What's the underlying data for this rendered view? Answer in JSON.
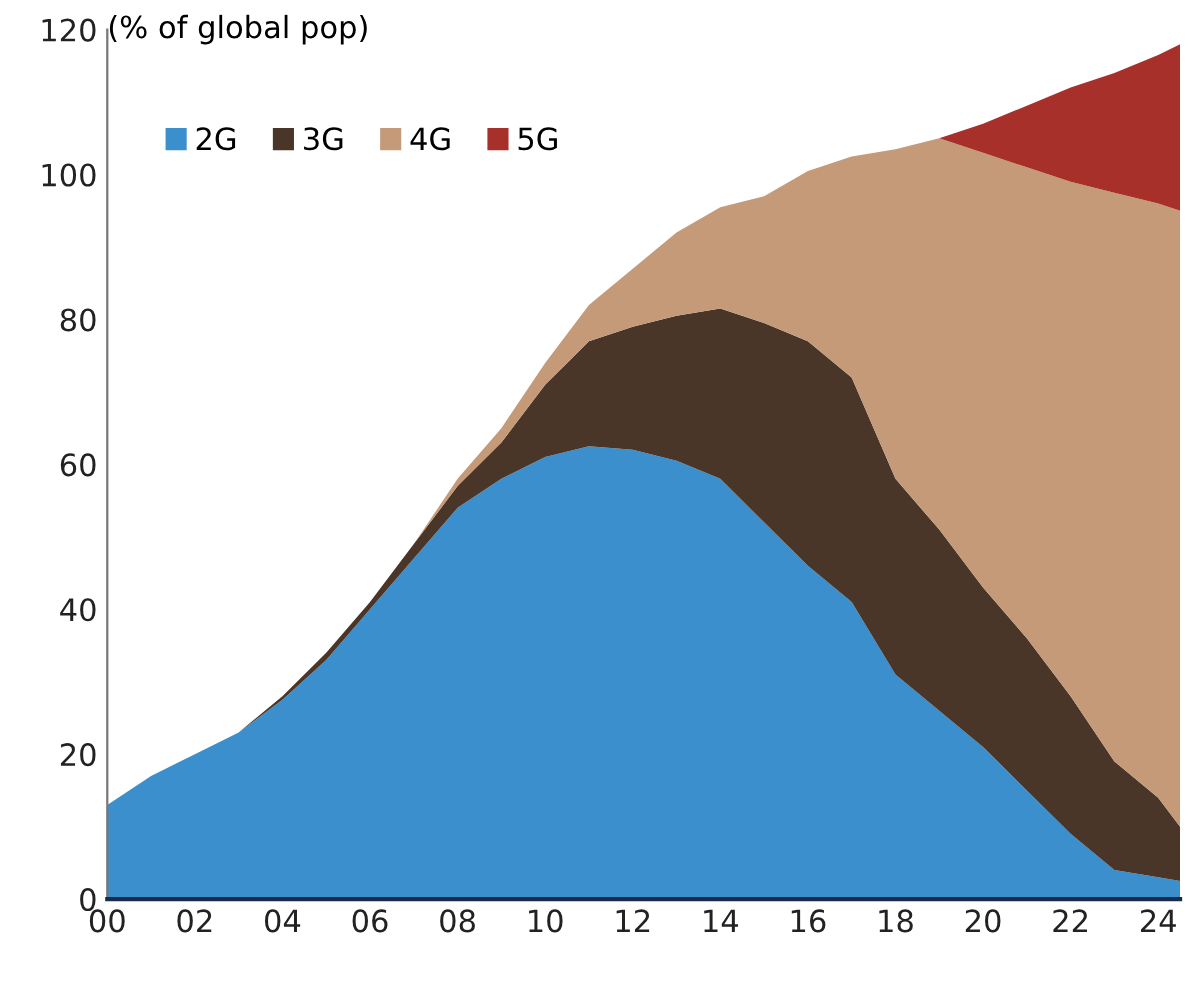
{
  "chart_data": {
    "type": "area",
    "stacked": true,
    "ylabel": "(% of global pop)",
    "x": [
      0,
      1,
      2,
      3,
      4,
      5,
      6,
      7,
      8,
      9,
      10,
      11,
      12,
      13,
      14,
      15,
      16,
      17,
      18,
      19,
      20,
      21,
      22,
      23,
      24,
      24.5
    ],
    "xlim": [
      0,
      24.5
    ],
    "xticks": [
      {
        "value": 0,
        "label": "00"
      },
      {
        "value": 2,
        "label": "02"
      },
      {
        "value": 4,
        "label": "04"
      },
      {
        "value": 6,
        "label": "06"
      },
      {
        "value": 8,
        "label": "08"
      },
      {
        "value": 10,
        "label": "10"
      },
      {
        "value": 12,
        "label": "12"
      },
      {
        "value": 14,
        "label": "14"
      },
      {
        "value": 16,
        "label": "16"
      },
      {
        "value": 18,
        "label": "18"
      },
      {
        "value": 20,
        "label": "20"
      },
      {
        "value": 22,
        "label": "22"
      },
      {
        "value": 24,
        "label": "24"
      }
    ],
    "ylim": [
      0,
      120
    ],
    "yticks": [
      0,
      20,
      40,
      60,
      80,
      100,
      120
    ],
    "grid": false,
    "legend": "top left",
    "series": [
      {
        "name": "2G",
        "color": "#3a8fcc",
        "values": [
          13,
          17,
          20,
          23,
          27.5,
          33,
          40,
          47,
          54,
          58,
          61,
          62.5,
          62,
          60.5,
          58,
          52,
          46,
          41,
          31,
          26,
          21,
          15,
          9,
          4,
          3,
          2.5
        ]
      },
      {
        "name": "3G",
        "color": "#4a3628",
        "values": [
          0,
          0,
          0,
          0,
          0.5,
          1,
          1,
          2,
          3,
          5,
          10,
          14.5,
          17,
          20,
          23.5,
          27.5,
          31,
          31,
          27,
          25,
          22,
          21,
          19,
          15,
          11,
          7.5
        ]
      },
      {
        "name": "4G",
        "color": "#c49a78",
        "values": [
          0,
          0,
          0,
          0,
          0,
          0,
          0,
          0,
          1,
          2,
          3,
          5,
          8,
          11.5,
          14,
          17.5,
          23.5,
          30.5,
          45.5,
          54,
          60,
          65,
          71,
          78.5,
          82,
          85
        ]
      },
      {
        "name": "5G",
        "color": "#a8302a",
        "values": [
          0,
          0,
          0,
          0,
          0,
          0,
          0,
          0,
          0,
          0,
          0,
          0,
          0,
          0,
          0,
          0,
          0,
          0,
          0,
          0,
          4,
          8.5,
          13,
          16.5,
          20.5,
          23
        ]
      }
    ]
  }
}
